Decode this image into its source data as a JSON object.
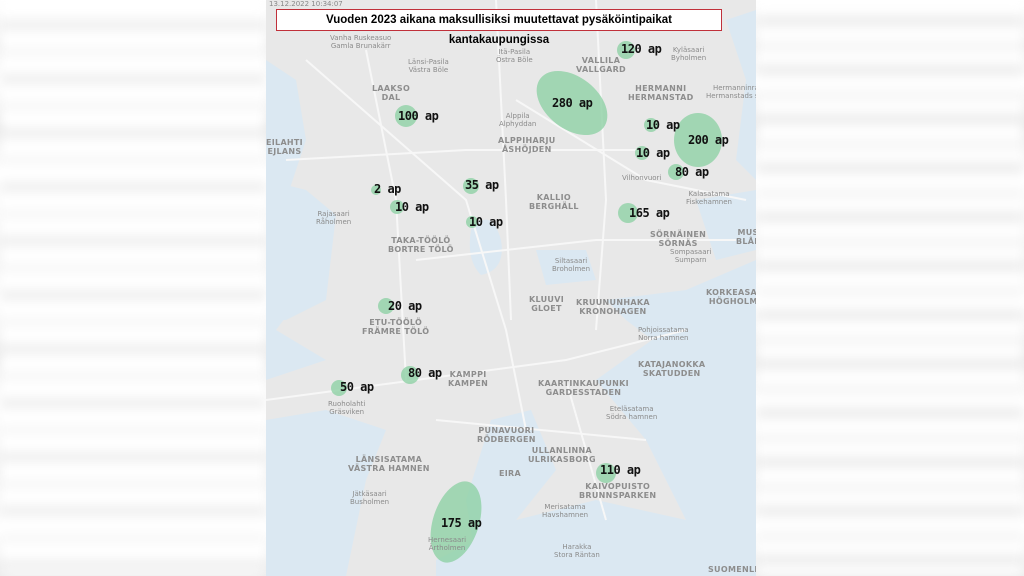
{
  "title": "Vuoden 2023 aikana maksullisiksi muutettavat pysäköintipaikat kantakaupungissa",
  "timestamp": "13.12.2022 10:34:07",
  "colors": {
    "highlight": "#8fd1a6",
    "land": "#e8e8e8",
    "water": "#dbe8f2",
    "title_border": "#c0303a"
  },
  "parking_areas": [
    "120 ap",
    "280 ap",
    "100 ap",
    "10 ap",
    "200 ap",
    "10 ap",
    "80 ap",
    "35 ap",
    "2 ap",
    "10 ap",
    "10 ap",
    "165 ap",
    "20 ap",
    "80 ap",
    "50 ap",
    "175 ap",
    "110 ap"
  ],
  "districts": [
    "LAAKSO\nDAL",
    "VALLILA\nVALLGARD",
    "HERMANNI\nHERMANSTAD",
    "ALPPIHARJU\nÅSHÖJDEN",
    "KALLIO\nBERGHÄLL",
    "SÖRNÄINEN\nSÖRNÄS",
    "TAKA-TÖÖLÖ\nBORTRE TÖLÖ",
    "ETU-TÖÖLÖ\nFRÄMRE TÖLÖ",
    "KLUUVI\nGLOET",
    "KRUUNUNHAKA\nKRONOHAGEN",
    "KATAJANOKKA\nSKATUDDEN",
    "KAMPPI\nKAMPEN",
    "KAARTINKAUPUNKI\nGARDESSTADEN",
    "PUNAVUORI\nRÖDBERGEN",
    "ULLANLINNA\nULRIKASBORG",
    "EIRA",
    "LÄNSISATAMA\nVÄSTRA HAMNEN",
    "KAIVOPUISTO\nBRUNNSPARKEN",
    "KORKEASAARI\nHÖGHOLMEN",
    "MUS\nBLÅE",
    "EILAHTI\nEJLANS",
    "SUOMENLI"
  ],
  "places": [
    "Länsi-Pasila\nVästra Böle",
    "Itä-Pasila\nÖstra Böle",
    "Kyläsaari\nByholmen",
    "Hermanninranta\nHermanstads strand",
    "Vanha Ruskeasuo\nGamla Brunakärr",
    "Rajasaari\nRåholmen",
    "Alppila\nAlphyddan",
    "Siltasaari\nBroholmen",
    "Pohjoissatama\nNorra hamnen",
    "Eteläsatama\nSödra hamnen",
    "Jätkäsaari\nBusholmen",
    "Merisatama\nHavshamnen",
    "Harakka\nStora Räntan",
    "Hernesaari\nÄrtholmen",
    "Ruoholahti\nGräsviken",
    "Sompasaari\nSumparn",
    "Kalasatama\nFiskehamnen",
    "Vilhonvuori"
  ]
}
